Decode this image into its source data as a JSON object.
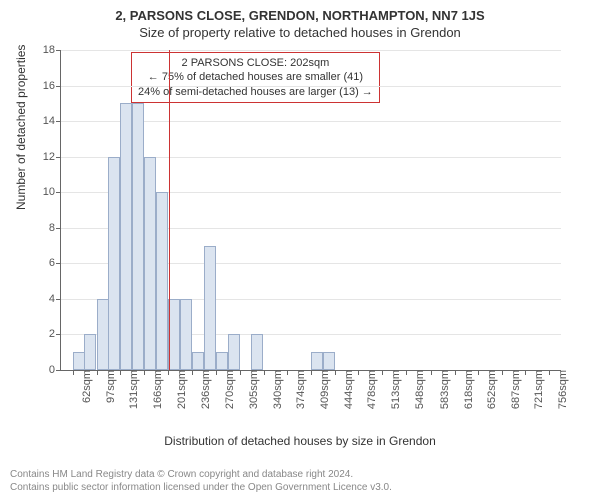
{
  "title_main": "2, PARSONS CLOSE, GRENDON, NORTHAMPTON, NN7 1JS",
  "title_sub": "Size of property relative to detached houses in Grendon",
  "ylabel": "Number of detached properties",
  "xlabel": "Distribution of detached houses by size in Grendon",
  "chart": {
    "type": "histogram",
    "ylim": [
      0,
      18
    ],
    "ytick_step": 2,
    "background_color": "#ffffff",
    "grid_color": "#e5e5e5",
    "bar_color": "#dbe4f0",
    "bar_border_color": "#9badc9",
    "axis_color": "#666666",
    "label_fontsize": 12,
    "tick_fontsize": 11,
    "xticks": [
      "62sqm",
      "97sqm",
      "131sqm",
      "166sqm",
      "201sqm",
      "236sqm",
      "270sqm",
      "305sqm",
      "340sqm",
      "374sqm",
      "409sqm",
      "444sqm",
      "478sqm",
      "513sqm",
      "548sqm",
      "583sqm",
      "618sqm",
      "652sqm",
      "687sqm",
      "721sqm",
      "756sqm"
    ],
    "xtick_values": [
      62,
      97,
      131,
      166,
      201,
      236,
      270,
      305,
      340,
      374,
      409,
      444,
      478,
      513,
      548,
      583,
      618,
      652,
      687,
      721,
      756
    ],
    "xlim": [
      45,
      773
    ],
    "bin_width_value": 17.5,
    "bars": [
      {
        "x": 62,
        "y": 1
      },
      {
        "x": 79,
        "y": 2
      },
      {
        "x": 97,
        "y": 4
      },
      {
        "x": 114,
        "y": 12
      },
      {
        "x": 131,
        "y": 15
      },
      {
        "x": 149,
        "y": 15
      },
      {
        "x": 166,
        "y": 12
      },
      {
        "x": 183,
        "y": 10
      },
      {
        "x": 201,
        "y": 4
      },
      {
        "x": 218,
        "y": 4
      },
      {
        "x": 236,
        "y": 1
      },
      {
        "x": 253,
        "y": 7
      },
      {
        "x": 270,
        "y": 1
      },
      {
        "x": 288,
        "y": 2
      },
      {
        "x": 322,
        "y": 2
      },
      {
        "x": 409,
        "y": 1
      },
      {
        "x": 426,
        "y": 1
      }
    ],
    "marker": {
      "x_value": 202,
      "color": "#cc3333"
    }
  },
  "annotation": {
    "line1": "2 PARSONS CLOSE: 202sqm",
    "line2": "← 75% of detached houses are smaller (41)",
    "line3": "24% of semi-detached houses are larger (13) →",
    "border_color": "#cc3333",
    "fontsize": 11
  },
  "footer": {
    "line1": "Contains HM Land Registry data © Crown copyright and database right 2024.",
    "line2": "Contains public sector information licensed under the Open Government Licence v3.0.",
    "fontsize": 10,
    "color": "#888888"
  }
}
